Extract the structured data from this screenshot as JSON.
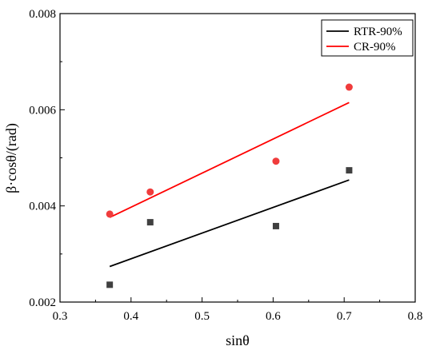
{
  "chart_data": {
    "type": "scatter",
    "xlabel": "sinθ",
    "ylabel": "β·cosθ/(rad)",
    "xlim": [
      0.3,
      0.8
    ],
    "ylim": [
      0.002,
      0.008
    ],
    "x_ticks": [
      "0.3",
      "0.4",
      "0.5",
      "0.6",
      "0.7",
      "0.8"
    ],
    "y_ticks": [
      "0.002",
      "0.004",
      "0.006",
      "0.008"
    ],
    "x_tick_values": [
      0.3,
      0.4,
      0.5,
      0.6,
      0.7,
      0.8
    ],
    "y_tick_values": [
      0.002,
      0.004,
      0.006,
      0.008
    ],
    "grid": false,
    "legend_position": "top-right",
    "series": [
      {
        "name": "RTR-90%",
        "color": "#000000",
        "marker_color": "#404040",
        "marker": "square",
        "points": [
          {
            "x": 0.37,
            "y": 0.00236
          },
          {
            "x": 0.427,
            "y": 0.00366
          },
          {
            "x": 0.604,
            "y": 0.00358
          },
          {
            "x": 0.707,
            "y": 0.00474
          }
        ],
        "fit_line": [
          {
            "x": 0.37,
            "y": 0.00274
          },
          {
            "x": 0.707,
            "y": 0.00454
          }
        ]
      },
      {
        "name": "CR-90%",
        "color": "#ff0000",
        "marker_color": "#f03c3c",
        "marker": "circle",
        "points": [
          {
            "x": 0.37,
            "y": 0.00383
          },
          {
            "x": 0.427,
            "y": 0.00429
          },
          {
            "x": 0.604,
            "y": 0.00493
          },
          {
            "x": 0.707,
            "y": 0.00647
          }
        ],
        "fit_line": [
          {
            "x": 0.37,
            "y": 0.00376
          },
          {
            "x": 0.707,
            "y": 0.00615
          }
        ]
      }
    ]
  }
}
